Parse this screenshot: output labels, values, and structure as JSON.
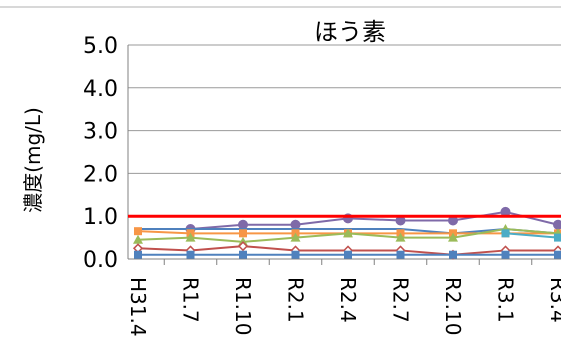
{
  "chart_data": {
    "type": "line",
    "title": "ほう素",
    "xlabel": "",
    "ylabel": "濃度(mg/L)",
    "ylim": [
      0,
      5
    ],
    "y_ticks": [
      "0.0",
      "1.0",
      "2.0",
      "3.0",
      "4.0",
      "5.0"
    ],
    "categories": [
      "H31.4",
      "R1.7",
      "R1.10",
      "R2.1",
      "R2.4",
      "R2.7",
      "R2.10",
      "R3.1",
      "R3.4"
    ],
    "grid": true,
    "reference_line": {
      "value": 1.0,
      "color": "#ff0000"
    },
    "series": [
      {
        "color": "#7f6aa8",
        "marker": "circle",
        "values": [
          null,
          0.7,
          0.8,
          0.8,
          0.95,
          0.9,
          0.9,
          1.1,
          0.8
        ]
      },
      {
        "color": "#4f81bd",
        "marker": "none",
        "values": [
          0.7,
          0.7,
          0.7,
          0.7,
          0.7,
          0.7,
          0.6,
          0.7,
          0.6
        ]
      },
      {
        "color": "#f79646",
        "marker": "square",
        "values": [
          0.65,
          0.6,
          0.6,
          0.6,
          0.6,
          0.6,
          0.6,
          0.6,
          0.6
        ]
      },
      {
        "color": "#9bbb59",
        "marker": "triangle",
        "values": [
          0.45,
          0.5,
          0.4,
          0.5,
          0.6,
          0.5,
          0.5,
          0.7,
          0.6
        ]
      },
      {
        "color": "#4bacc6",
        "marker": "square",
        "values": [
          null,
          null,
          null,
          null,
          null,
          null,
          null,
          0.6,
          0.5
        ]
      },
      {
        "color": "#c0504d",
        "marker": "diamond",
        "values": [
          0.25,
          0.2,
          0.3,
          0.2,
          0.2,
          0.2,
          0.1,
          0.2,
          0.2
        ]
      },
      {
        "color": "#4f81bd",
        "marker": "square",
        "values": [
          0.1,
          0.1,
          0.1,
          0.1,
          0.1,
          0.1,
          0.1,
          0.1,
          0.1
        ]
      }
    ]
  }
}
